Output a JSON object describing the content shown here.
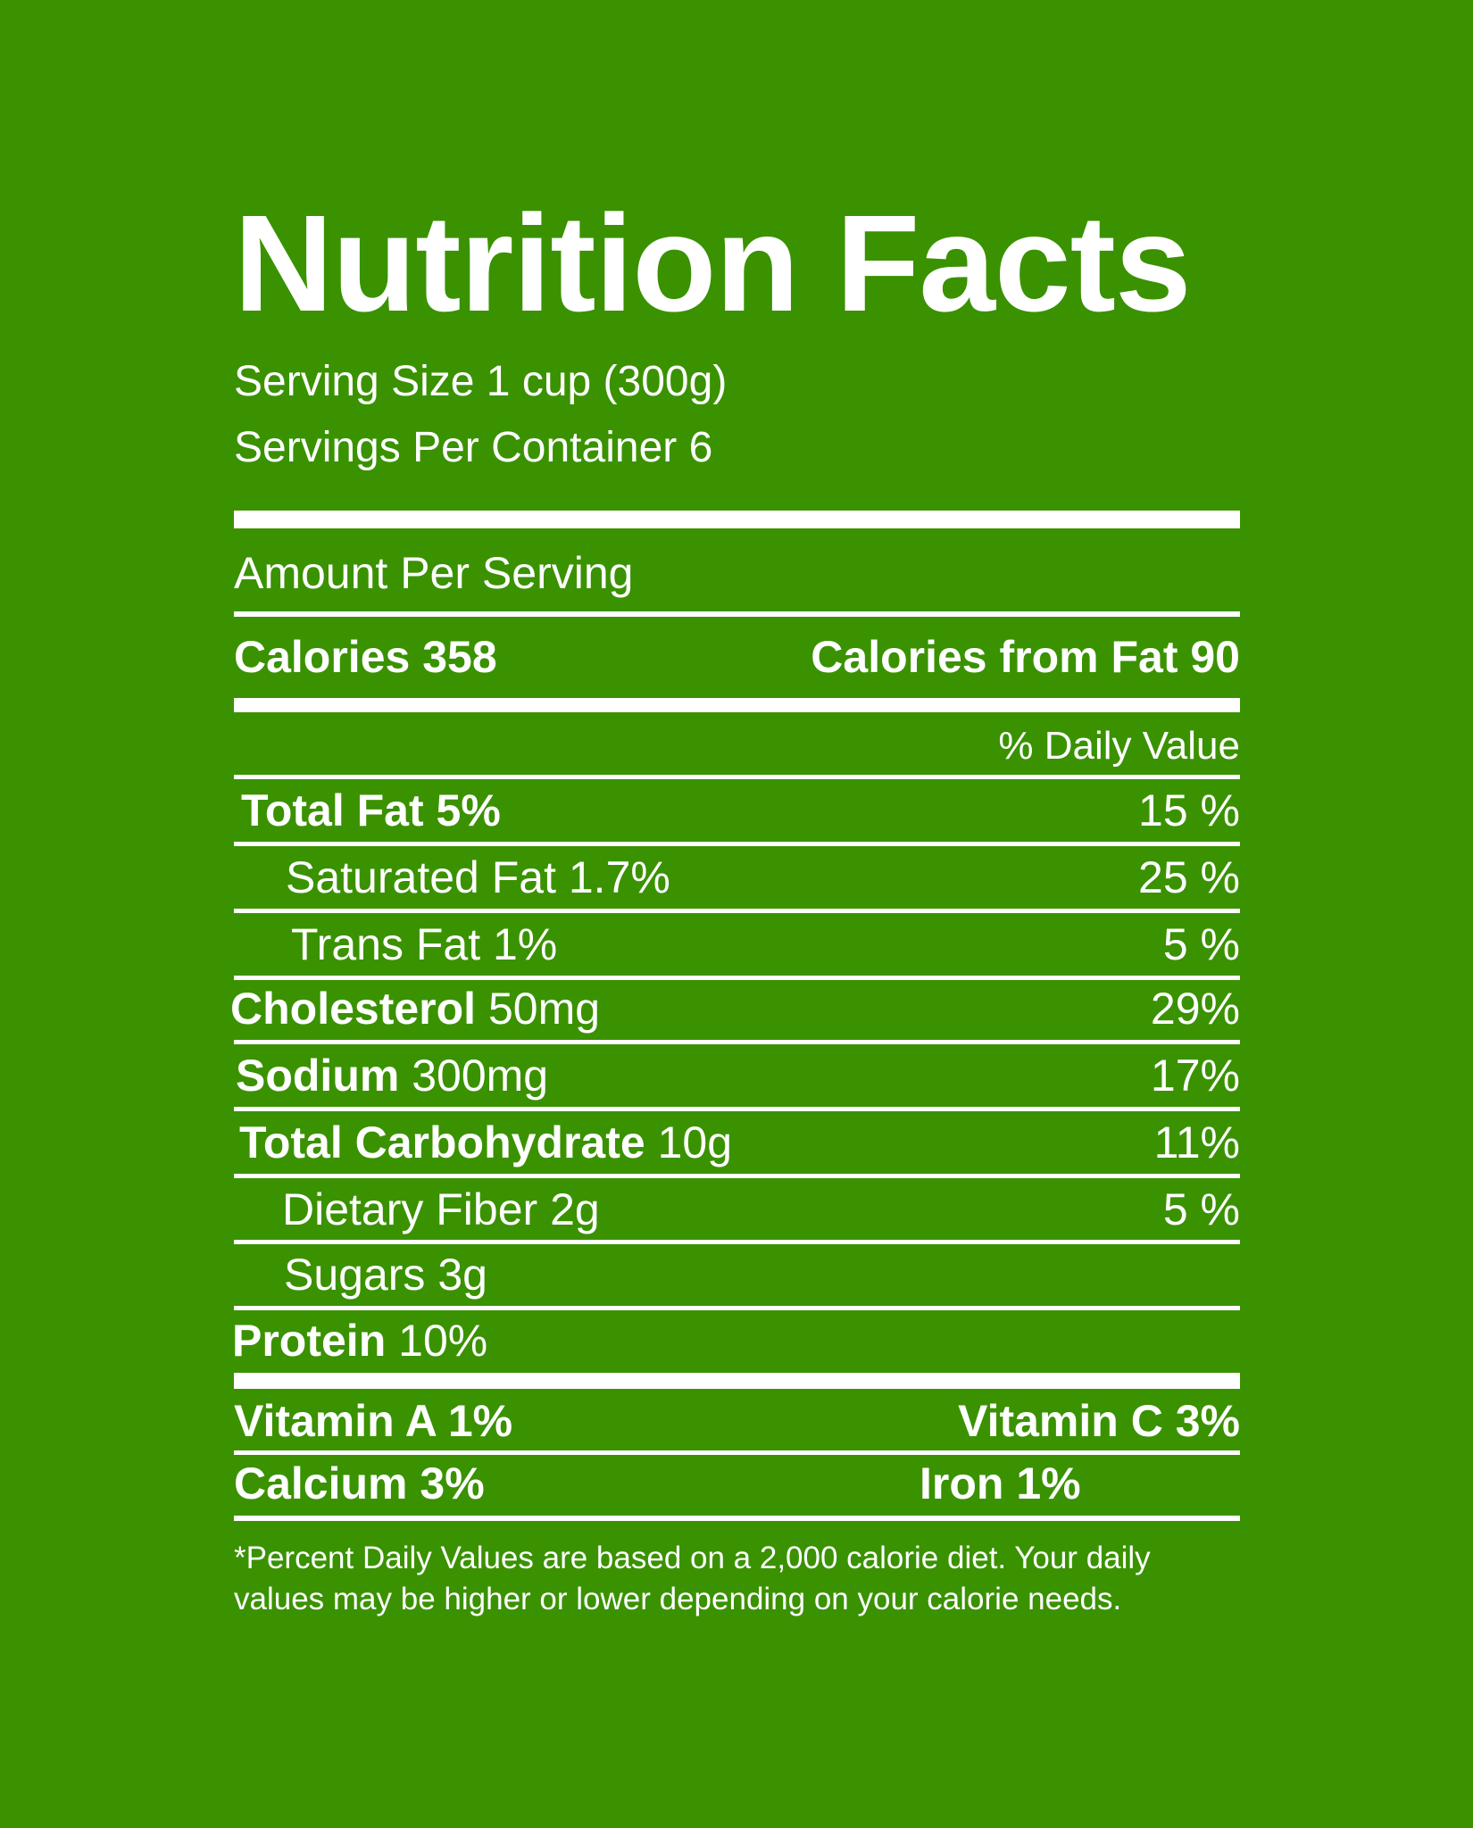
{
  "title": "Nutrition Facts",
  "serving_size": "Serving Size 1 cup (300g)",
  "servings_per_container": "Servings Per Container 6",
  "amount_per_serving": "Amount Per Serving",
  "calories": "Calories 358",
  "calories_from_fat": "Calories from Fat 90",
  "daily_value_header": "% Daily Value",
  "nutrients": [
    {
      "name": "Total Fat",
      "amount": "5%",
      "dv": "15 %"
    },
    {
      "name": "Saturated Fat",
      "amount": "1.7%",
      "dv": "25 %"
    },
    {
      "name": "Trans Fat",
      "amount": "1%",
      "dv": "5 %"
    },
    {
      "name": "Cholesterol",
      "amount": "50mg",
      "dv": "29%"
    },
    {
      "name": "Sodium",
      "amount": "300mg",
      "dv": "17%"
    },
    {
      "name": "Total Carbohydrate",
      "amount": "10g",
      "dv": "11%"
    },
    {
      "name": "Dietary Fiber",
      "amount": "2g",
      "dv": "5 %"
    },
    {
      "name": "Sugars",
      "amount": "3g",
      "dv": ""
    },
    {
      "name": "Protein",
      "amount": "10%",
      "dv": ""
    }
  ],
  "vitamins": {
    "vitamin_a": "Vitamin A 1%",
    "vitamin_c": "Vitamin C 3%",
    "calcium": "Calcium 3%",
    "iron": "Iron 1%"
  },
  "footnote_line1": "*Percent Daily Values are based on a 2,000 calorie diet.  Your daily",
  "footnote_line2": "values may be higher or lower depending on your calorie needs.",
  "colors": {
    "background": "#3a9200",
    "foreground": "#ffffff"
  }
}
